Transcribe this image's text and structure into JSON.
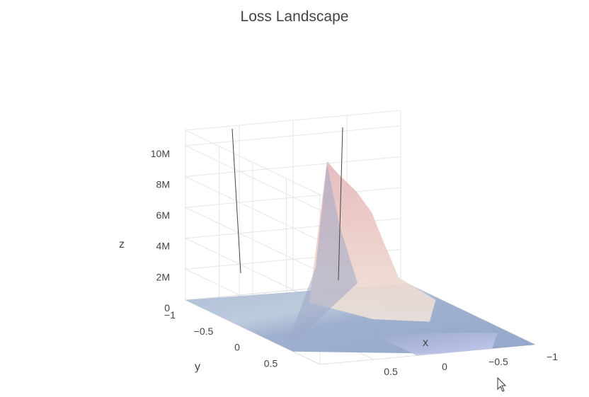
{
  "chart_data": {
    "type": "surface",
    "title": "Loss Landscape",
    "xlabel": "x",
    "ylabel": "y",
    "zlabel": "z",
    "x_ticks": [
      "−1",
      "−0.5",
      "0",
      "0.5"
    ],
    "y_ticks": [
      "−1",
      "−0.5",
      "0",
      "0.5"
    ],
    "z_ticks": [
      "0",
      "2M",
      "4M",
      "6M",
      "8M",
      "10M"
    ],
    "xlim": [
      -1,
      1
    ],
    "ylim": [
      -1,
      1
    ],
    "zlim": [
      0,
      11000000
    ],
    "series": [
      {
        "surface": "main",
        "peak": {
          "x": -1,
          "y": 1,
          "z": 9200000
        },
        "colorscale": [
          "#c4cdfb",
          "#8fa6cc",
          "#bed0dc",
          "#e5e5c8",
          "#efd0c8",
          "#e6b9bd"
        ]
      }
    ],
    "grid": true,
    "legend": "none"
  }
}
